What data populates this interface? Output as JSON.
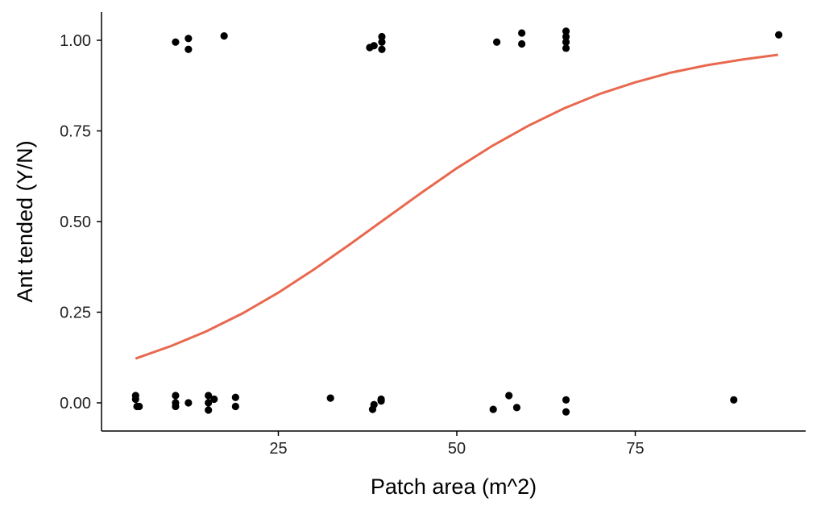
{
  "chart_data": {
    "type": "scatter",
    "title": "",
    "xlabel": "Patch area (m^2)",
    "ylabel": "Ant tended (Y/N)",
    "xlim": [
      0,
      98
    ],
    "ylim": [
      -0.07,
      1.08
    ],
    "x_ticks": [
      25,
      50,
      75
    ],
    "x_tick_labels": [
      "25",
      "50",
      "75"
    ],
    "y_ticks": [
      0,
      0.25,
      0.5,
      0.75,
      1
    ],
    "y_tick_labels": [
      "0.00",
      "0.25",
      "0.50",
      "0.75",
      "1.00"
    ],
    "grid": false,
    "colors": {
      "points": "#000000",
      "curve": "#e8694f"
    },
    "points": [
      [
        5.0,
        0.02
      ],
      [
        5.0,
        0.01
      ],
      [
        5.2,
        -0.01
      ],
      [
        5.5,
        -0.01
      ],
      [
        10.6,
        0.02
      ],
      [
        10.6,
        0.0
      ],
      [
        10.6,
        -0.01
      ],
      [
        12.4,
        0.0
      ],
      [
        15.2,
        0.02
      ],
      [
        15.2,
        0.0
      ],
      [
        15.2,
        -0.02
      ],
      [
        16.0,
        0.01
      ],
      [
        19.0,
        0.015
      ],
      [
        19.0,
        -0.01
      ],
      [
        32.3,
        0.013
      ],
      [
        38.2,
        -0.018
      ],
      [
        38.4,
        -0.005
      ],
      [
        39.4,
        0.01
      ],
      [
        39.4,
        0.005
      ],
      [
        55.1,
        -0.018
      ],
      [
        57.3,
        0.02
      ],
      [
        58.4,
        -0.013
      ],
      [
        65.3,
        0.008
      ],
      [
        65.3,
        -0.025
      ],
      [
        88.8,
        0.008
      ],
      [
        10.6,
        0.995
      ],
      [
        12.4,
        1.005
      ],
      [
        12.4,
        0.975
      ],
      [
        17.4,
        1.012
      ],
      [
        37.8,
        0.98
      ],
      [
        38.4,
        0.985
      ],
      [
        39.5,
        1.01
      ],
      [
        39.5,
        0.995
      ],
      [
        39.5,
        0.975
      ],
      [
        55.6,
        0.995
      ],
      [
        59.1,
        1.02
      ],
      [
        59.1,
        0.99
      ],
      [
        65.3,
        1.025
      ],
      [
        65.3,
        1.01
      ],
      [
        65.3,
        0.995
      ],
      [
        65.3,
        0.978
      ],
      [
        95.1,
        1.015
      ]
    ],
    "fit_curve": {
      "x": [
        5,
        10,
        15,
        20,
        25,
        30,
        35,
        40,
        45,
        50,
        55,
        60,
        65,
        70,
        75,
        80,
        85,
        90,
        95
      ],
      "y": [
        0.122,
        0.157,
        0.198,
        0.247,
        0.304,
        0.368,
        0.437,
        0.508,
        0.579,
        0.647,
        0.709,
        0.764,
        0.812,
        0.852,
        0.884,
        0.911,
        0.931,
        0.947,
        0.96
      ]
    }
  }
}
